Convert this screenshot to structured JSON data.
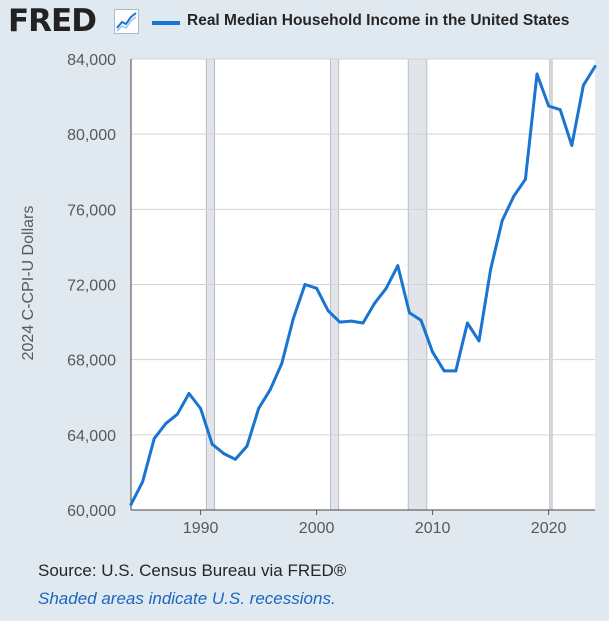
{
  "header": {
    "logo_text": "FRED",
    "logo_icon": "line-chart-icon",
    "legend_label": "Real Median Household Income in the United States"
  },
  "footer": {
    "source": "Source: U.S. Census Bureau via FRED®",
    "note": "Shaded areas indicate U.S. recessions."
  },
  "colors": {
    "series": "#1974d2",
    "background": "#e1e9f0",
    "plot_bg": "#ffffff",
    "grid": "#d3d3d3",
    "recession": "#e1e4e8"
  },
  "chart_data": {
    "type": "line",
    "title": "Real Median Household Income in the United States",
    "xlabel": "",
    "ylabel": "2024 C-CPI-U Dollars",
    "xlim": [
      1984,
      2024
    ],
    "ylim": [
      60000,
      84000
    ],
    "x_ticks": [
      1990,
      2000,
      2010,
      2020
    ],
    "x_tick_labels": [
      "1990",
      "2000",
      "2010",
      "2020"
    ],
    "y_ticks": [
      60000,
      64000,
      68000,
      72000,
      76000,
      80000,
      84000
    ],
    "y_tick_labels": [
      "60,000",
      "64,000",
      "68,000",
      "72,000",
      "76,000",
      "80,000",
      "84,000"
    ],
    "grid": true,
    "legend": "top",
    "recessions": [
      [
        1990.5,
        1991.2
      ],
      [
        2001.2,
        2001.9
      ],
      [
        2007.9,
        2009.5
      ],
      [
        2020.1,
        2020.3
      ]
    ],
    "series": [
      {
        "name": "Real Median Household Income in the United States",
        "x": [
          1984,
          1985,
          1986,
          1987,
          1988,
          1989,
          1990,
          1991,
          1992,
          1993,
          1994,
          1995,
          1996,
          1997,
          1998,
          1999,
          2000,
          2001,
          2002,
          2003,
          2004,
          2005,
          2006,
          2007,
          2008,
          2009,
          2010,
          2011,
          2012,
          2013,
          2014,
          2015,
          2016,
          2017,
          2018,
          2019,
          2020,
          2021,
          2022,
          2023,
          2024
        ],
        "values": [
          60300,
          61500,
          63800,
          64600,
          65100,
          66200,
          65400,
          63500,
          63000,
          62700,
          63400,
          65400,
          66400,
          67800,
          70200,
          72000,
          71800,
          70600,
          70000,
          70050,
          69950,
          71000,
          71800,
          73000,
          70500,
          70100,
          68400,
          67400,
          67400,
          69950,
          69000,
          72800,
          75400,
          76700,
          77600,
          83200,
          81500,
          81300,
          79400,
          82600,
          83600
        ]
      }
    ]
  }
}
